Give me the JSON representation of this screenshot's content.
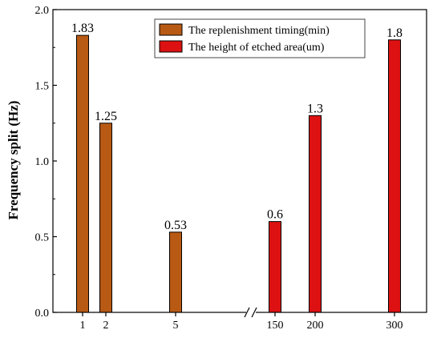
{
  "chart_data": {
    "type": "bar",
    "title": "",
    "xlabel": "",
    "ylabel": "Frequency split (Hz)",
    "ylim": [
      0,
      2.0
    ],
    "yticks": [
      "0.0",
      "0.5",
      "1.0",
      "1.5",
      "2.0"
    ],
    "x_axis_break": true,
    "legend_position": "top-right",
    "grid": false,
    "series": [
      {
        "name": "The replenishment timing(min)",
        "color": "#B85A14",
        "categories": [
          "1",
          "2",
          "5"
        ],
        "values": [
          1.83,
          1.25,
          0.53
        ],
        "labels": [
          "1.83",
          "1.25",
          "0.53"
        ]
      },
      {
        "name": "The height of etched  area(um)",
        "color": "#DD1111",
        "categories": [
          "150",
          "200",
          "300"
        ],
        "values": [
          0.6,
          1.3,
          1.8
        ],
        "labels": [
          "0.6",
          "1.3",
          "1.8"
        ]
      }
    ]
  }
}
